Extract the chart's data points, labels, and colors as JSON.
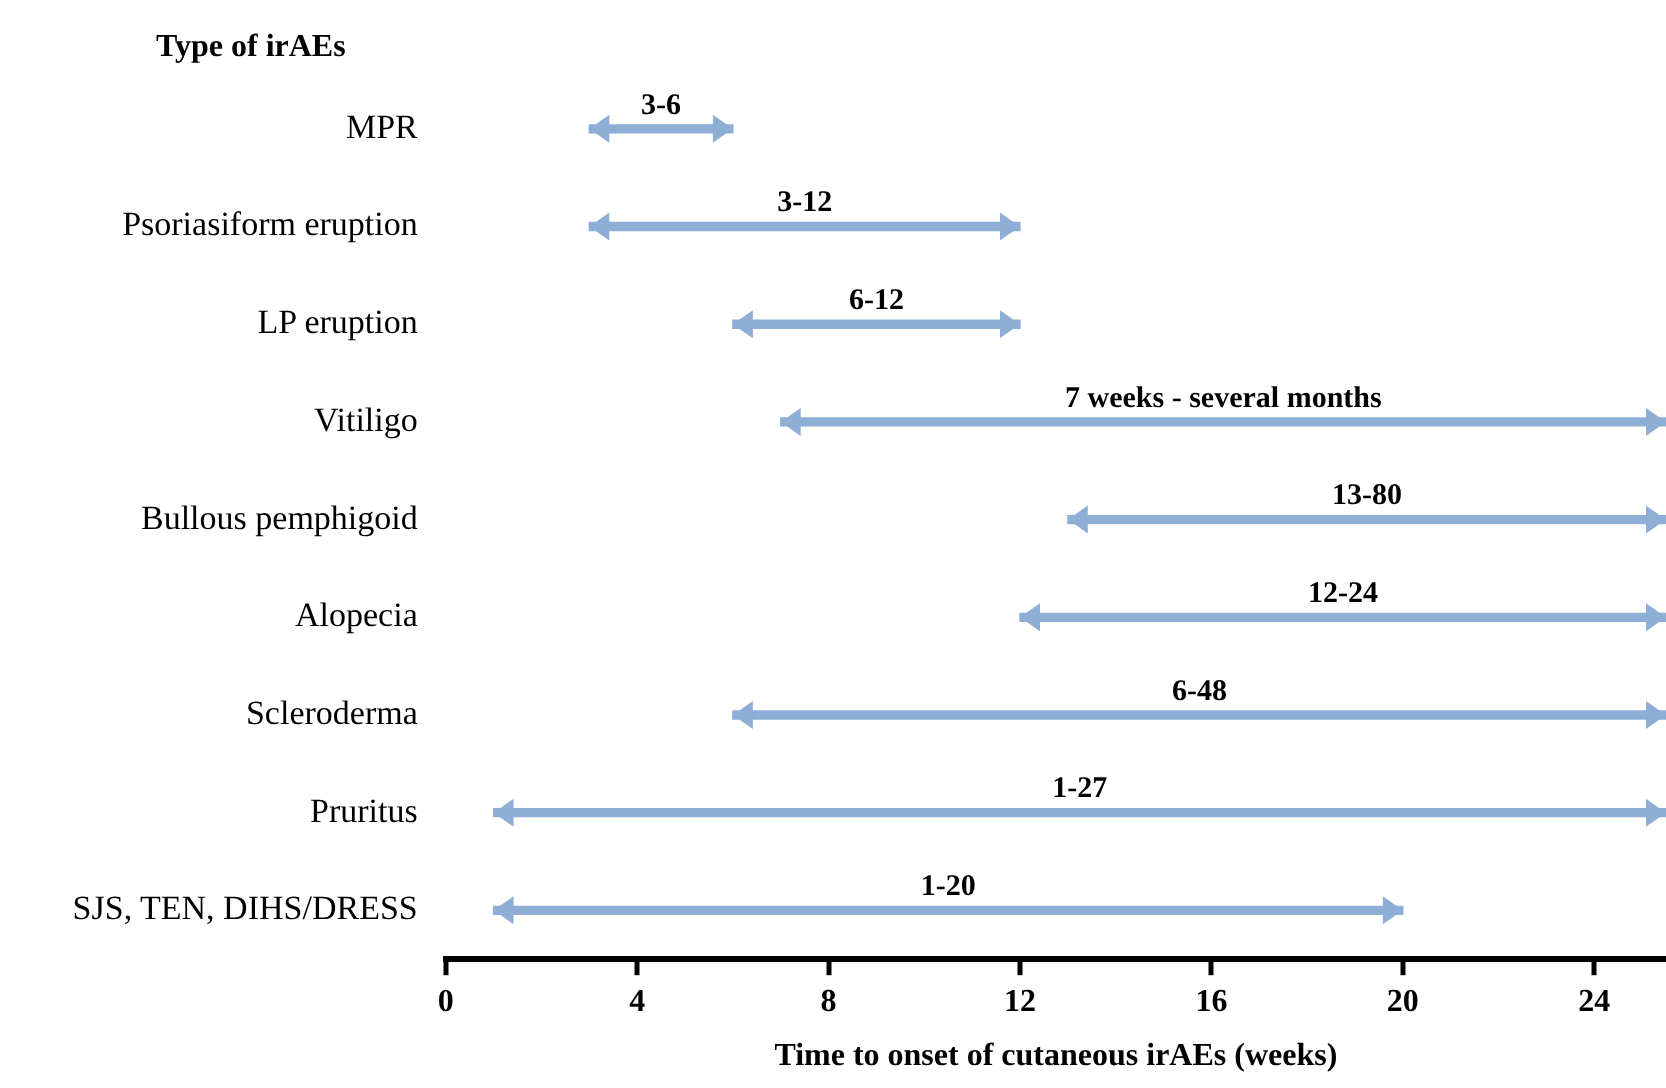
{
  "chart_data": {
    "type": "bar",
    "orientation": "horizontal",
    "ylabel": "Type of irAEs",
    "xlabel": "Time to onset of cutaneous irAEs (weeks)",
    "categories": [
      "MPR",
      "Psoriasiform eruption",
      "LP eruption",
      "Vitiligo",
      "Bullous pemphigoid",
      "Alopecia",
      "Scleroderma",
      "Pruritus",
      "SJS, TEN, DIHS/DRESS"
    ],
    "base": [
      3,
      3,
      6,
      7,
      13,
      12,
      6,
      1,
      1
    ],
    "values": [
      3,
      9,
      6,
      18.5,
      12.5,
      13.5,
      19.5,
      24.5,
      19
    ],
    "annotations": [
      {
        "text": "3-6",
        "x": 4.5,
        "y": "MPR"
      },
      {
        "text": "3-12",
        "x": 7.5,
        "y": "Psoriasiform eruption"
      },
      {
        "text": "6-12",
        "x": 9,
        "y": "LP eruption"
      },
      {
        "text": "7 weeks - several months",
        "x": 16.25,
        "y": "Vitiligo"
      },
      {
        "text": "13-80",
        "x": 19.25,
        "y": "Bullous pemphigoid"
      },
      {
        "text": "12-24",
        "x": 18.75,
        "y": "Alopecia"
      },
      {
        "text": "6-48",
        "x": 15.75,
        "y": "Scleroderma"
      },
      {
        "text": "1-27",
        "x": 13.25,
        "y": "Pruritus"
      },
      {
        "text": "1-20",
        "x": 10.5,
        "y": "SJS, TEN, DIHS/DRESS"
      }
    ],
    "color": "#8eaed6",
    "xlim": [
      0,
      25.5
    ],
    "xticks": [
      0,
      4,
      8,
      12,
      16,
      20,
      24
    ],
    "grid": false
  }
}
